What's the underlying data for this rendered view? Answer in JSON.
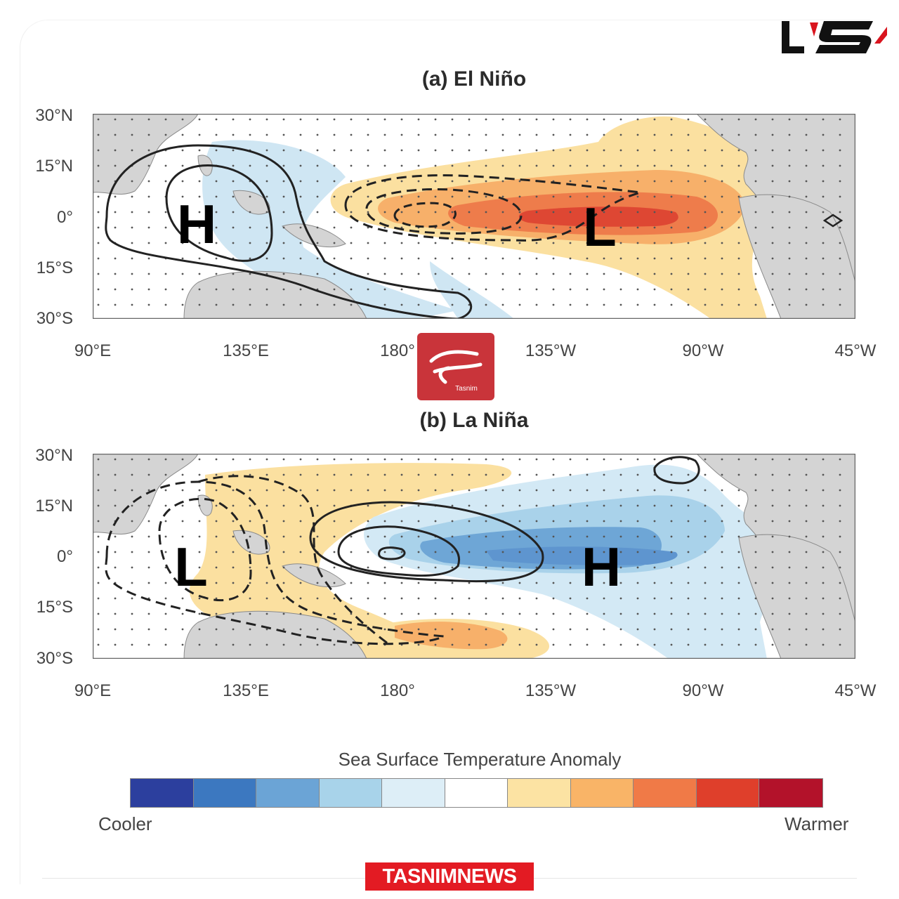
{
  "brand_logo": {
    "icon": "rokna-logo",
    "color": "#d9141e"
  },
  "watermark": {
    "icon": "tasnim-logo-stamp",
    "text": "Tasnim",
    "color": "#c9343a"
  },
  "footer": {
    "label": "TASNIMNEWS",
    "color": "#e31b23"
  },
  "panels": [
    {
      "title": "(a) El Niño",
      "lat_labels": [
        "30°N",
        "15°N",
        "0°",
        "15°S",
        "30°S"
      ],
      "lon_labels": [
        "90°E",
        "135°E",
        "180°",
        "135°W",
        "90°W",
        "45°W"
      ],
      "pressure_labels": [
        {
          "text": "H",
          "lon": 120,
          "lat": 0
        },
        {
          "text": "L",
          "lon": 241,
          "lat": -2
        }
      ],
      "sst_anomaly": "warm central and eastern equatorial Pacific, cool western Pacific"
    },
    {
      "title": "(b) La Niña",
      "lat_labels": [
        "30°N",
        "15°N",
        "0°",
        "15°S",
        "30°S"
      ],
      "lon_labels": [
        "90°E",
        "135°E",
        "180°",
        "135°W",
        "90°W",
        "45°W"
      ],
      "pressure_labels": [
        {
          "text": "L",
          "lon": 122,
          "lat": 0
        },
        {
          "text": "H",
          "lon": 240,
          "lat": 0
        }
      ],
      "sst_anomaly": "cool central and eastern equatorial Pacific, warm western Pacific"
    }
  ],
  "legend": {
    "title": "Sea Surface Temperature Anomaly",
    "low_label": "Cooler",
    "high_label": "Warmer",
    "colors": [
      "#2c3f9e",
      "#3c78c0",
      "#6ba4d6",
      "#a8d3ea",
      "#ddeef7",
      "#ffffff",
      "#fce3a3",
      "#f9b467",
      "#f07a47",
      "#df3f2b",
      "#b3122a"
    ]
  }
}
